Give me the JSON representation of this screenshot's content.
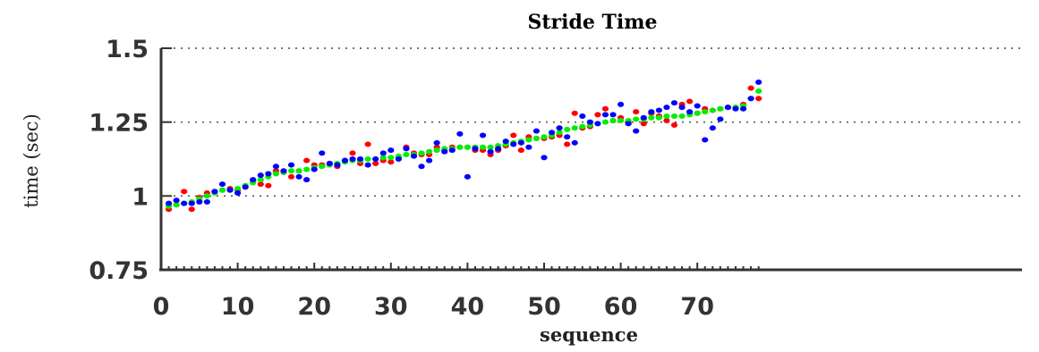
{
  "chart_data": {
    "type": "scatter",
    "title": "Stride Time",
    "xlabel": "sequence",
    "ylabel": "time (sec)",
    "xlim": [
      0,
      79
    ],
    "ylim": [
      0.75,
      1.5
    ],
    "x_ticks": [
      0,
      10,
      20,
      30,
      40,
      50,
      60,
      70
    ],
    "x_tick_labels": [
      "0",
      "10",
      "20",
      "30",
      "40",
      "50",
      "60",
      "70"
    ],
    "y_ticks": [
      0.75,
      1,
      1.25,
      1.5
    ],
    "y_tick_labels": [
      "0.75",
      "1",
      "1.25",
      "1.5"
    ],
    "grid": "horizontal-dotted",
    "legend": "none",
    "series": [
      {
        "color": "#ff0000",
        "x": [
          1,
          2,
          3,
          4,
          5,
          6,
          7,
          8,
          9,
          10,
          11,
          12,
          13,
          14,
          15,
          16,
          17,
          18,
          19,
          20,
          21,
          22,
          23,
          24,
          25,
          26,
          27,
          28,
          29,
          30,
          31,
          32,
          33,
          34,
          35,
          36,
          37,
          38,
          39,
          40,
          41,
          42,
          43,
          44,
          45,
          46,
          47,
          48,
          49,
          50,
          51,
          52,
          53,
          54,
          55,
          56,
          57,
          58,
          59,
          60,
          61,
          62,
          63,
          64,
          65,
          66,
          67,
          68,
          69,
          70,
          71,
          72,
          73,
          74,
          75,
          76,
          77,
          78
        ],
        "y": [
          0.955,
          0.97,
          1.015,
          0.955,
          0.995,
          1.01,
          1.015,
          1.02,
          1.025,
          1.02,
          1.03,
          1.05,
          1.04,
          1.035,
          1.085,
          1.08,
          1.065,
          1.085,
          1.12,
          1.105,
          1.105,
          1.11,
          1.1,
          1.12,
          1.145,
          1.11,
          1.175,
          1.11,
          1.12,
          1.115,
          1.13,
          1.165,
          1.145,
          1.14,
          1.14,
          1.165,
          1.155,
          1.165,
          1.165,
          1.165,
          1.155,
          1.155,
          1.14,
          1.155,
          1.17,
          1.205,
          1.155,
          1.2,
          1.195,
          1.195,
          1.2,
          1.205,
          1.175,
          1.28,
          1.23,
          1.235,
          1.275,
          1.295,
          1.255,
          1.265,
          1.25,
          1.285,
          1.245,
          1.28,
          1.27,
          1.255,
          1.24,
          1.31,
          1.32,
          1.28,
          1.295,
          1.29,
          1.295,
          1.3,
          1.3,
          1.31,
          1.365,
          1.33
        ]
      },
      {
        "color": "#00ee00",
        "x": [
          1,
          2,
          3,
          4,
          5,
          6,
          7,
          8,
          9,
          10,
          11,
          12,
          13,
          14,
          15,
          16,
          17,
          18,
          19,
          20,
          21,
          22,
          23,
          24,
          25,
          26,
          27,
          28,
          29,
          30,
          31,
          32,
          33,
          34,
          35,
          36,
          37,
          38,
          39,
          40,
          41,
          42,
          43,
          44,
          45,
          46,
          47,
          48,
          49,
          50,
          51,
          52,
          53,
          54,
          55,
          56,
          57,
          58,
          59,
          60,
          61,
          62,
          63,
          64,
          65,
          66,
          67,
          68,
          69,
          70,
          71,
          72,
          73,
          74,
          75,
          76,
          77,
          78
        ],
        "y": [
          0.965,
          0.97,
          0.975,
          0.98,
          0.99,
          1.0,
          1.01,
          1.02,
          1.02,
          1.025,
          1.035,
          1.045,
          1.055,
          1.065,
          1.075,
          1.08,
          1.085,
          1.085,
          1.09,
          1.095,
          1.1,
          1.105,
          1.11,
          1.115,
          1.12,
          1.12,
          1.125,
          1.125,
          1.13,
          1.13,
          1.135,
          1.14,
          1.14,
          1.145,
          1.15,
          1.155,
          1.16,
          1.16,
          1.165,
          1.165,
          1.165,
          1.165,
          1.165,
          1.17,
          1.175,
          1.18,
          1.185,
          1.19,
          1.195,
          1.2,
          1.205,
          1.215,
          1.225,
          1.23,
          1.235,
          1.24,
          1.245,
          1.25,
          1.255,
          1.255,
          1.255,
          1.26,
          1.26,
          1.265,
          1.265,
          1.27,
          1.27,
          1.27,
          1.275,
          1.28,
          1.285,
          1.29,
          1.295,
          1.3,
          1.3,
          1.305,
          1.33,
          1.355
        ]
      },
      {
        "color": "#0000ff",
        "x": [
          1,
          2,
          3,
          4,
          5,
          6,
          7,
          8,
          9,
          10,
          11,
          12,
          13,
          14,
          15,
          16,
          17,
          18,
          19,
          20,
          21,
          22,
          23,
          24,
          25,
          26,
          27,
          28,
          29,
          30,
          31,
          32,
          33,
          34,
          35,
          36,
          37,
          38,
          39,
          40,
          41,
          42,
          43,
          44,
          45,
          46,
          47,
          48,
          49,
          50,
          51,
          52,
          53,
          54,
          55,
          56,
          57,
          58,
          59,
          60,
          61,
          62,
          63,
          64,
          65,
          66,
          67,
          68,
          69,
          70,
          71,
          72,
          73,
          74,
          75,
          76,
          77,
          78
        ],
        "y": [
          0.975,
          0.985,
          0.975,
          0.975,
          0.98,
          0.98,
          1.015,
          1.04,
          1.02,
          1.01,
          1.03,
          1.055,
          1.07,
          1.075,
          1.1,
          1.085,
          1.105,
          1.065,
          1.055,
          1.09,
          1.145,
          1.11,
          1.105,
          1.12,
          1.125,
          1.125,
          1.105,
          1.125,
          1.145,
          1.155,
          1.125,
          1.16,
          1.135,
          1.1,
          1.12,
          1.18,
          1.15,
          1.155,
          1.21,
          1.065,
          1.16,
          1.205,
          1.15,
          1.16,
          1.185,
          1.175,
          1.18,
          1.165,
          1.22,
          1.13,
          1.215,
          1.23,
          1.2,
          1.18,
          1.27,
          1.25,
          1.245,
          1.275,
          1.275,
          1.31,
          1.245,
          1.22,
          1.265,
          1.285,
          1.29,
          1.3,
          1.315,
          1.3,
          1.285,
          1.305,
          1.19,
          1.23,
          1.26,
          1.3,
          1.295,
          1.295,
          1.33,
          1.385
        ]
      }
    ]
  }
}
